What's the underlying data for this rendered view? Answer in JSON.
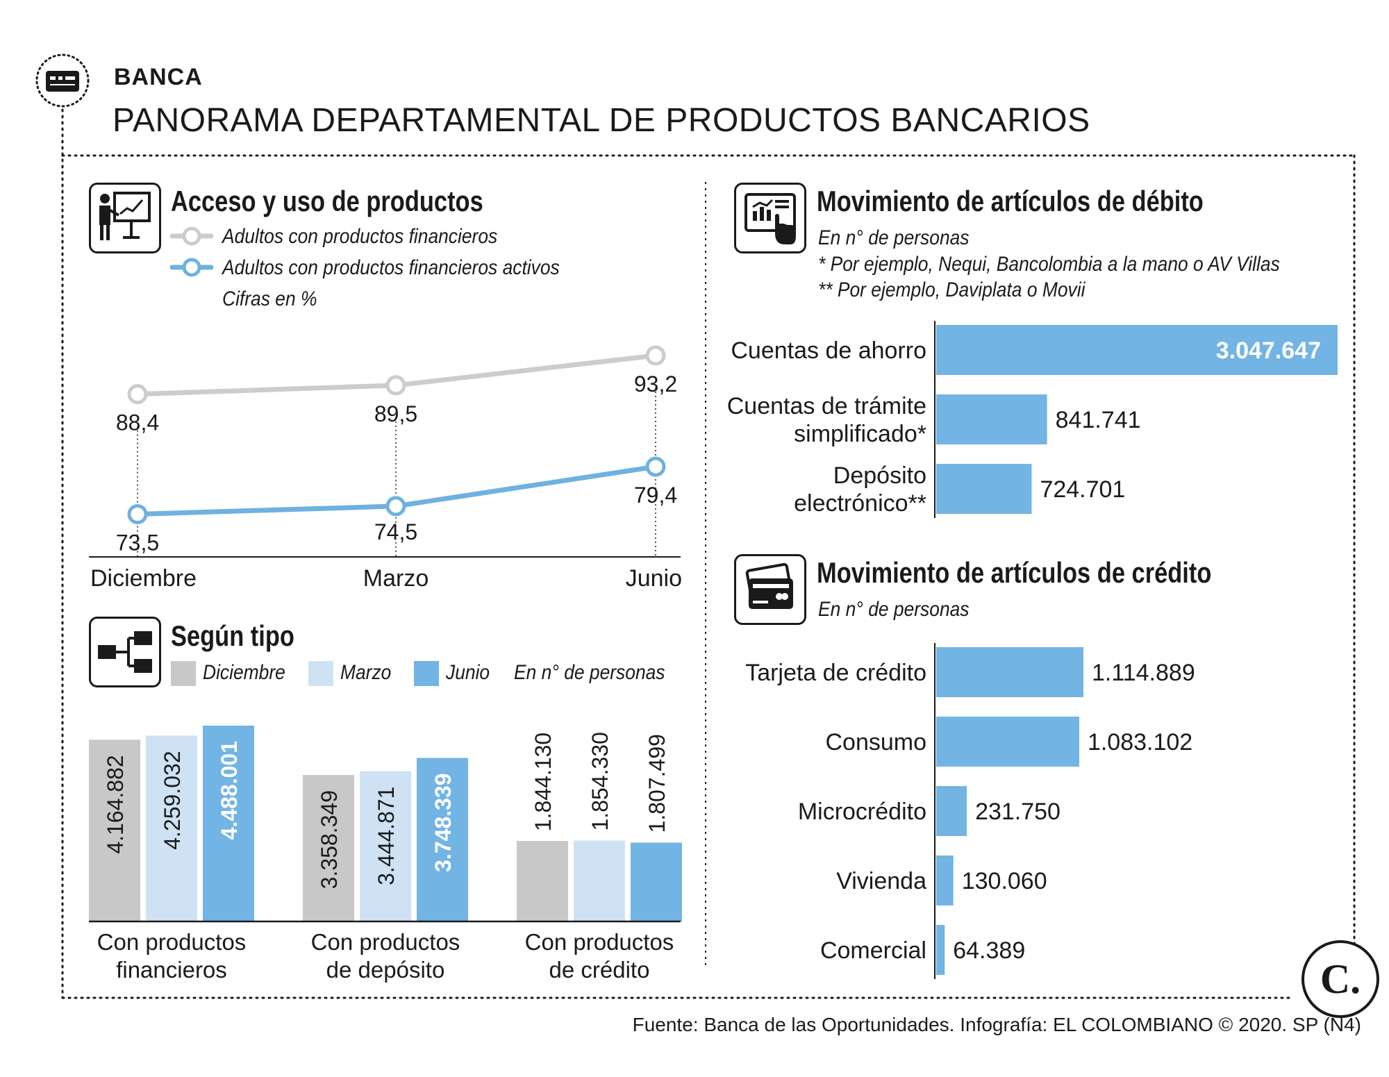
{
  "header": {
    "section": "BANCA",
    "title": "PANORAMA DEPARTAMENTAL DE PRODUCTOS BANCARIOS"
  },
  "access": {
    "title": "Acceso y uso de productos",
    "legend_gray": "Adultos con productos financieros",
    "legend_blue": "Adultos con productos financieros activos",
    "units": "Cifras en %"
  },
  "by_type": {
    "title": "Según tipo",
    "legend_dec": "Diciembre",
    "legend_mar": "Marzo",
    "legend_jun": "Junio",
    "units": "En n° de personas"
  },
  "debit": {
    "title": "Movimiento de artículos de débito",
    "units": "En n° de personas",
    "note1": "* Por ejemplo, Nequi, Bancolombia a la mano o AV Villas",
    "note2": "** Por ejemplo, Daviplata o Movii"
  },
  "credit": {
    "title": "Movimiento de artículos de crédito",
    "units": "En n° de personas"
  },
  "footer": {
    "source": "Fuente: Banca de las Oportunidades. Infografía: EL COLOMBIANO © 2020. SP (N4)",
    "logo": "C."
  },
  "colors": {
    "gray": "#c8c8c8",
    "light_blue": "#cfe2f3",
    "blue": "#72b4e3",
    "line_gray": "#cccccc",
    "line_blue": "#6fb1e0"
  },
  "chart_data": [
    {
      "type": "line",
      "title": "Acceso y uso de productos",
      "categories": [
        "Diciembre",
        "Marzo",
        "Junio"
      ],
      "series": [
        {
          "name": "Adultos con productos financieros",
          "values": [
            88.4,
            89.5,
            93.2
          ],
          "labels": [
            "88,4",
            "89,5",
            "93,2"
          ]
        },
        {
          "name": "Adultos con productos financieros activos",
          "values": [
            73.5,
            74.5,
            79.4
          ],
          "labels": [
            "73,5",
            "74,5",
            "79,4"
          ]
        }
      ]
    },
    {
      "type": "bar",
      "title": "Según tipo",
      "categories": [
        "Con productos financieros",
        "Con productos de depósito",
        "Con productos de crédito"
      ],
      "category_lines": [
        [
          "Con productos",
          "financieros"
        ],
        [
          "Con productos",
          "de depósito"
        ],
        [
          "Con productos",
          "de crédito"
        ]
      ],
      "series": [
        {
          "name": "Diciembre",
          "values": [
            4164882,
            3358349,
            1844130
          ],
          "labels": [
            "4.164.882",
            "3.358.349",
            "1.844.130"
          ]
        },
        {
          "name": "Marzo",
          "values": [
            4259032,
            3444871,
            1854330
          ],
          "labels": [
            "4.259.032",
            "3.444.871",
            "1.854.330"
          ]
        },
        {
          "name": "Junio",
          "values": [
            4488001,
            3748339,
            1807499
          ],
          "labels": [
            "4.488.001",
            "3.748.339",
            "1.807.499"
          ]
        }
      ]
    },
    {
      "type": "bar",
      "orientation": "horizontal",
      "title": "Movimiento de artículos de débito",
      "categories": [
        "Cuentas de ahorro",
        "Cuentas de trámite simplificado*",
        "Depósito electrónico**"
      ],
      "category_lines": [
        [
          "Cuentas de ahorro"
        ],
        [
          "Cuentas de trámite",
          "simplificado*"
        ],
        [
          "Depósito",
          "electrónico**"
        ]
      ],
      "values": [
        3047647,
        841741,
        724701
      ],
      "labels": [
        "3.047.647",
        "841.741",
        "724.701"
      ]
    },
    {
      "type": "bar",
      "orientation": "horizontal",
      "title": "Movimiento de artículos de crédito",
      "categories": [
        "Tarjeta de crédito",
        "Consumo",
        "Microcrédito",
        "Vivienda",
        "Comercial"
      ],
      "category_lines": [
        [
          "Tarjeta de crédito"
        ],
        [
          "Consumo"
        ],
        [
          "Microcrédito"
        ],
        [
          "Vivienda"
        ],
        [
          "Comercial"
        ]
      ],
      "values": [
        1114889,
        1083102,
        231750,
        130060,
        64389
      ],
      "labels": [
        "1.114.889",
        "1.083.102",
        "231.750",
        "130.060",
        "64.389"
      ]
    }
  ]
}
